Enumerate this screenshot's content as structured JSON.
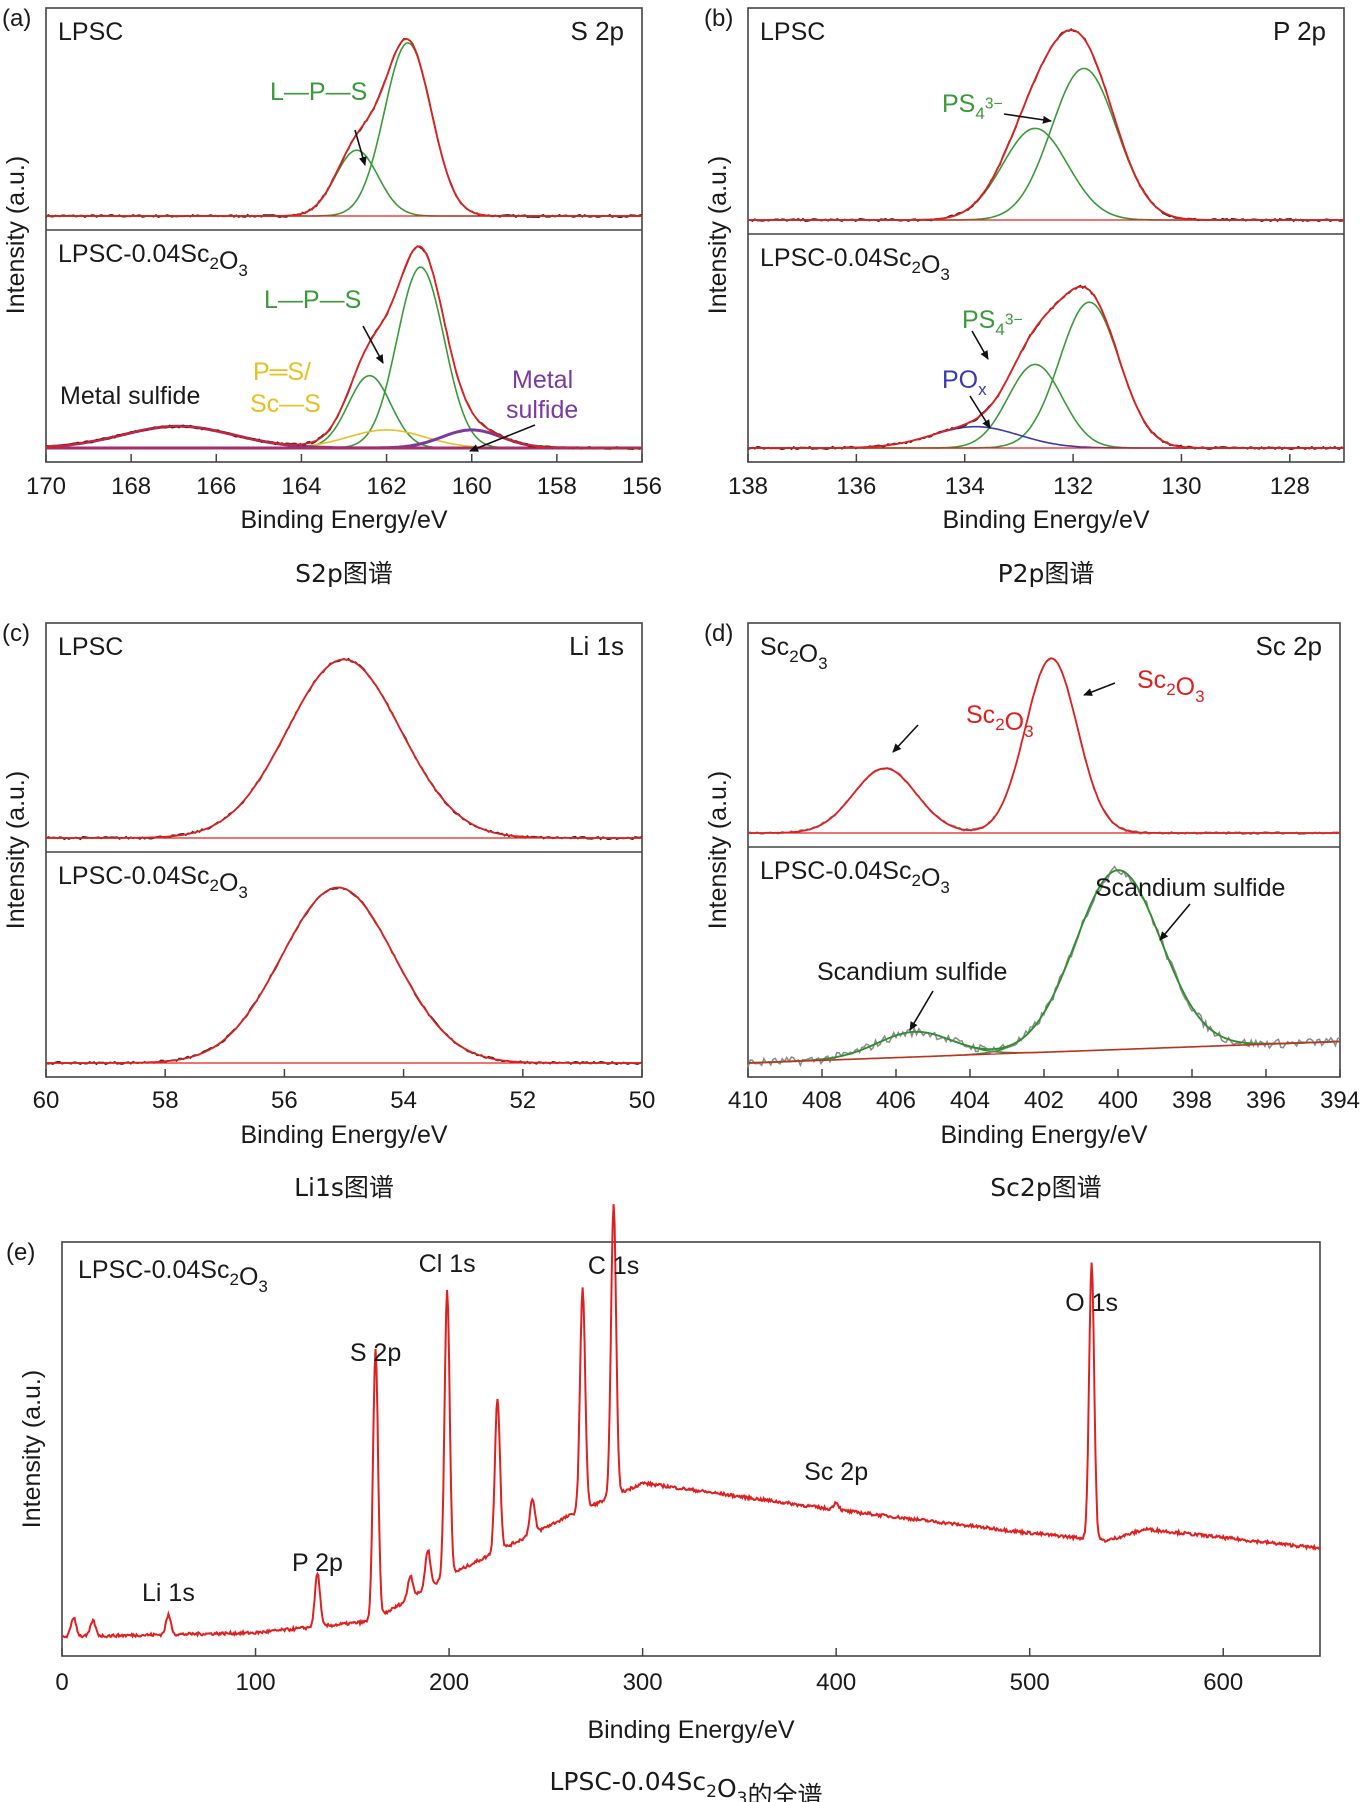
{
  "colors": {
    "experimental": "#2b2b2b",
    "envelope": "#e02020",
    "component": "#3a9a3a",
    "oxide": "#e8c020",
    "metal_sulfide": "#7a3aa0",
    "pox": "#3a3ab0",
    "sc2o3_fit": "#e02020",
    "sulfide_fit": "#2f8f2f"
  },
  "chart_data": [
    {
      "panel": "(a)",
      "type": "line",
      "element": "S 2p",
      "caption": "S2p图谱",
      "xlabel": "Binding Energy/eV",
      "ylabel": "Intensity (a.u.)",
      "xlim": [
        170,
        156
      ],
      "x_ticks": [
        "170",
        "168",
        "166",
        "164",
        "162",
        "160",
        "158",
        "156"
      ],
      "subplots": [
        {
          "sample": "LPSC",
          "peaks": [
            {
              "label": "L—P—S",
              "center": 161.5,
              "height": 1.0,
              "width": 0.55
            },
            {
              "label": "L—P—S",
              "center": 162.7,
              "height": 0.38,
              "width": 0.5
            }
          ],
          "annotations": [
            "L—P—S"
          ]
        },
        {
          "sample": "LPSC-0.04Sc₂O₃",
          "peaks": [
            {
              "label": "L—P—S",
              "center": 161.2,
              "height": 1.0,
              "width": 0.55
            },
            {
              "label": "L—P—S",
              "center": 162.4,
              "height": 0.4,
              "width": 0.5
            },
            {
              "label": "P═S/Sc—S",
              "center": 162.0,
              "height": 0.1,
              "width": 0.9
            },
            {
              "label": "Metal sulfide",
              "center": 166.9,
              "height": 0.12,
              "width": 1.3
            },
            {
              "label": "Metal sulfide",
              "center": 160.0,
              "height": 0.1,
              "width": 0.7
            }
          ],
          "annotations": [
            "L—P—S",
            "P═S/",
            "Sc—S",
            "Metal sulfide",
            "Metal",
            "sulfide"
          ]
        }
      ]
    },
    {
      "panel": "(b)",
      "type": "line",
      "element": "P 2p",
      "caption": "P2p图谱",
      "xlabel": "Binding Energy/eV",
      "ylabel": "Intensity (a.u.)",
      "xlim": [
        138,
        127
      ],
      "x_ticks": [
        "138",
        "136",
        "134",
        "132",
        "130",
        "128"
      ],
      "subplots": [
        {
          "sample": "LPSC",
          "peaks": [
            {
              "label": "PS₄³⁻",
              "center": 131.8,
              "height": 0.86,
              "width": 0.6
            },
            {
              "label": "PS₄³⁻",
              "center": 132.7,
              "height": 0.52,
              "width": 0.6
            }
          ],
          "annotations": [
            "PS₄³⁻"
          ]
        },
        {
          "sample": "LPSC-0.04Sc₂O₃",
          "peaks": [
            {
              "label": "PS₄³⁻",
              "center": 131.7,
              "height": 0.82,
              "width": 0.55
            },
            {
              "label": "PS₄³⁻",
              "center": 132.7,
              "height": 0.47,
              "width": 0.5
            },
            {
              "label": "POₓ",
              "center": 133.8,
              "height": 0.12,
              "width": 0.8
            }
          ],
          "annotations": [
            "PS₄³⁻",
            "POₓ"
          ]
        }
      ]
    },
    {
      "panel": "(c)",
      "type": "line",
      "element": "Li 1s",
      "caption": "Li1s图谱",
      "xlabel": "Binding Energy/eV",
      "ylabel": "Intensity (a.u.)",
      "xlim": [
        60,
        50
      ],
      "x_ticks": [
        "60",
        "58",
        "56",
        "54",
        "52",
        "50"
      ],
      "subplots": [
        {
          "sample": "LPSC",
          "peaks": [
            {
              "label": "Li 1s",
              "center": 55.0,
              "height": 1.0,
              "width": 0.95
            }
          ],
          "annotations": []
        },
        {
          "sample": "LPSC-0.04Sc₂O₃",
          "peaks": [
            {
              "label": "Li 1s",
              "center": 55.1,
              "height": 1.0,
              "width": 0.95
            }
          ],
          "annotations": []
        }
      ]
    },
    {
      "panel": "(d)",
      "type": "line",
      "element": "Sc 2p",
      "caption": "Sc2p图谱",
      "xlabel": "Binding Energy/eV",
      "ylabel": "Intensity (a.u.)",
      "xlim": [
        410,
        394
      ],
      "x_ticks": [
        "410",
        "408",
        "406",
        "404",
        "402",
        "400",
        "398",
        "396",
        "394"
      ],
      "subplots": [
        {
          "sample": "Sc₂O₃",
          "peaks": [
            {
              "label": "Sc₂O₃",
              "center": 401.8,
              "height": 1.0,
              "width": 0.7
            },
            {
              "label": "Sc₂O₃",
              "center": 406.3,
              "height": 0.37,
              "width": 0.85
            }
          ],
          "annotations": [
            "Sc₂O₃",
            "Sc₂O₃"
          ]
        },
        {
          "sample": "LPSC-0.04Sc₂O₃",
          "peaks": [
            {
              "label": "Scandium sulfide",
              "center": 400.0,
              "height": 1.0,
              "width": 1.15
            },
            {
              "label": "Scandium sulfide",
              "center": 405.5,
              "height": 0.14,
              "width": 1.0
            }
          ],
          "annotations": [
            "Scandium sulfide",
            "Scandium sulfide"
          ]
        }
      ]
    },
    {
      "panel": "(e)",
      "type": "line",
      "sample": "LPSC-0.04Sc₂O₃",
      "caption": "LPSC-0.04Sc₂O₃的全谱",
      "xlabel": "Binding Energy/eV",
      "ylabel": "Intensity (a.u.)",
      "xlim": [
        0,
        650
      ],
      "x_ticks": [
        "0",
        "100",
        "200",
        "300",
        "400",
        "500",
        "600"
      ],
      "peak_labels": [
        {
          "label": "Li 1s",
          "x": 55
        },
        {
          "label": "P 2p",
          "x": 132
        },
        {
          "label": "S 2p",
          "x": 162
        },
        {
          "label": "Cl 1s",
          "x": 199
        },
        {
          "label": "C 1s",
          "x": 285
        },
        {
          "label": "Sc 2p",
          "x": 400
        },
        {
          "label": "O 1s",
          "x": 532
        }
      ],
      "baseline": [
        [
          0,
          0.04
        ],
        [
          100,
          0.05
        ],
        [
          160,
          0.08
        ],
        [
          200,
          0.2
        ],
        [
          260,
          0.35
        ],
        [
          300,
          0.44
        ],
        [
          400,
          0.37
        ],
        [
          500,
          0.31
        ],
        [
          540,
          0.29
        ],
        [
          560,
          0.32
        ],
        [
          650,
          0.27
        ]
      ],
      "peaks": [
        {
          "x": 6,
          "height": 0.05
        },
        {
          "x": 16,
          "height": 0.04
        },
        {
          "x": 55,
          "height": 0.05
        },
        {
          "x": 132,
          "height": 0.14
        },
        {
          "x": 162,
          "height": 0.7
        },
        {
          "x": 180,
          "height": 0.06
        },
        {
          "x": 189,
          "height": 0.1
        },
        {
          "x": 199,
          "height": 0.75
        },
        {
          "x": 225,
          "height": 0.4
        },
        {
          "x": 243,
          "height": 0.09
        },
        {
          "x": 269,
          "height": 0.58
        },
        {
          "x": 285,
          "height": 0.76
        },
        {
          "x": 400,
          "height": 0.02
        },
        {
          "x": 532,
          "height": 0.72
        }
      ]
    }
  ]
}
